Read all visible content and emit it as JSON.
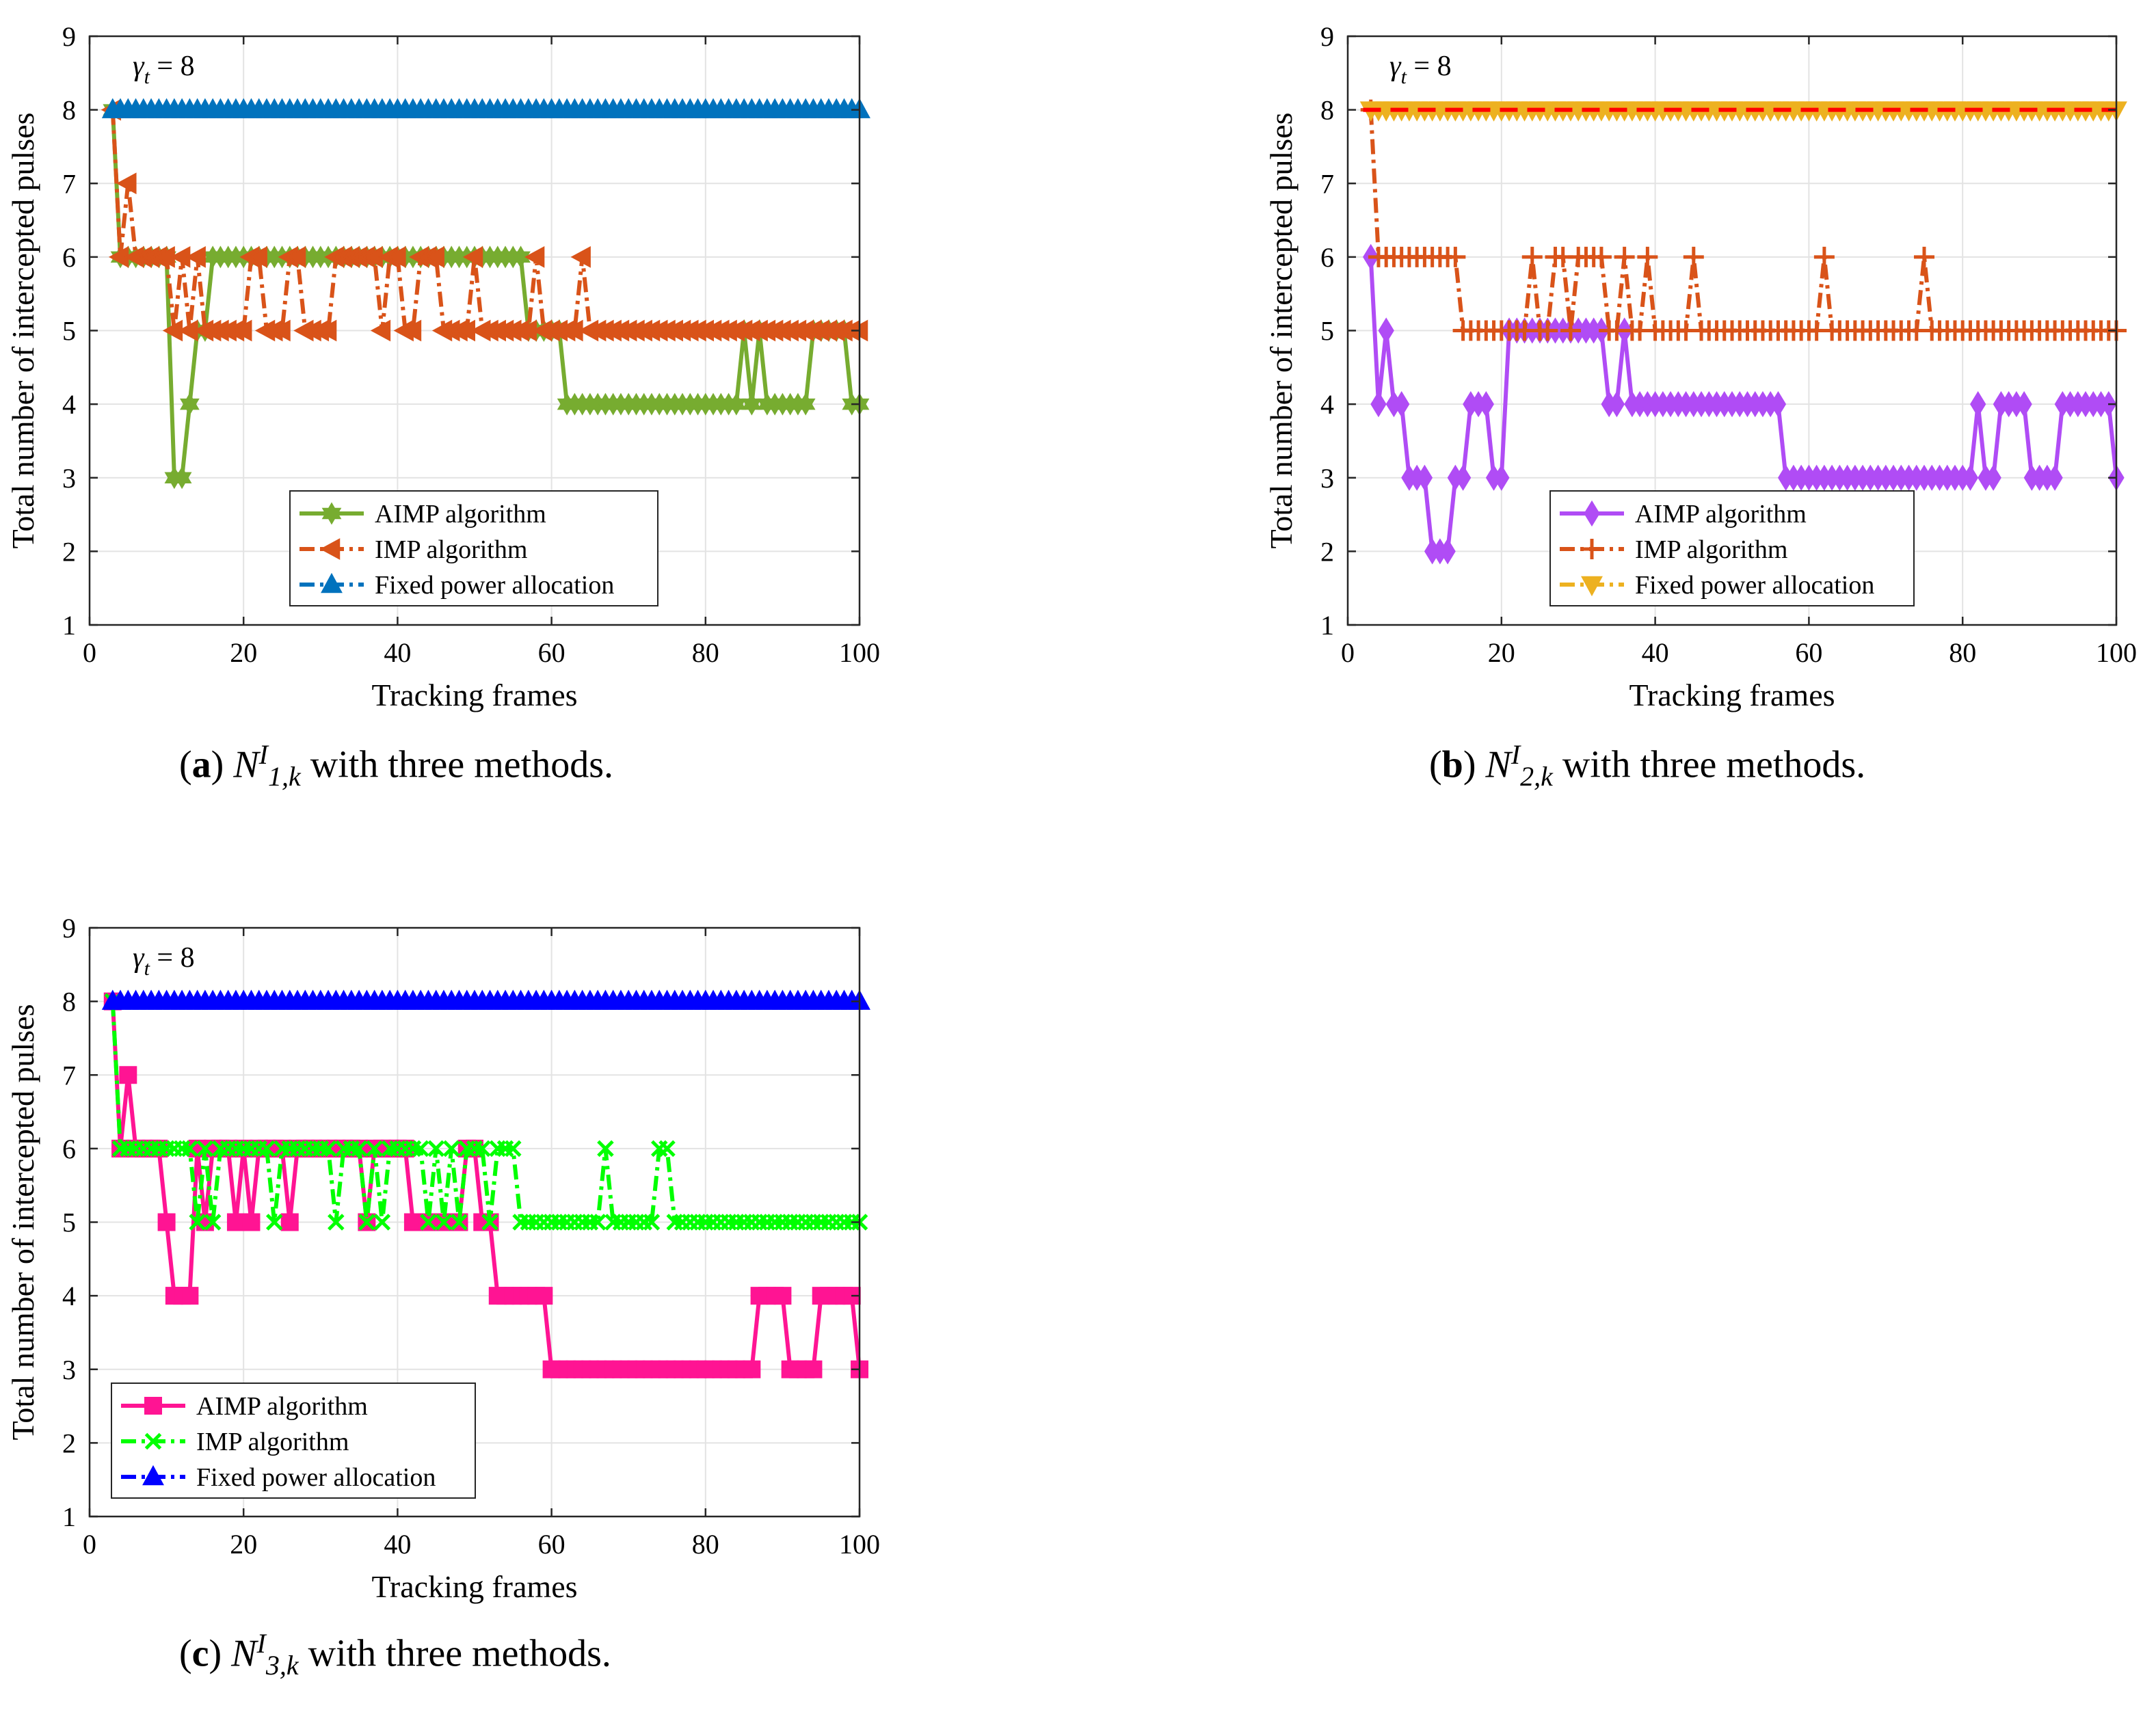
{
  "chart_data": [
    {
      "type": "line",
      "panel": "a",
      "caption": {
        "label": "a",
        "symbol": "N",
        "sup": "I",
        "sub": "1,k",
        "text": " with three methods."
      },
      "xlabel": "Tracking frames",
      "ylabel": "Total number of intercepted pulses",
      "xlim": [
        0,
        100
      ],
      "ylim": [
        1,
        9
      ],
      "xticks": [
        0,
        20,
        40,
        60,
        80,
        100
      ],
      "yticks": [
        1,
        2,
        3,
        4,
        5,
        6,
        7,
        8,
        9
      ],
      "grid": true,
      "annotation": {
        "symbol": "γ",
        "sub": "t",
        "text": " = 8"
      },
      "threshold": 8,
      "threshold_color": "#ff0000",
      "legend_position": "lower-center",
      "series": [
        {
          "name": "AIMP algorithm",
          "color": "#77ac30",
          "marker": "hexagram",
          "dash": "solid",
          "x_start": 3,
          "x_end": 100,
          "runs": [
            [
              3,
              3,
              8
            ],
            [
              4,
              10,
              6
            ],
            [
              11,
              12,
              3
            ],
            [
              13,
              13,
              4
            ],
            [
              14,
              14,
              5
            ],
            [
              15,
              15,
              5
            ],
            [
              16,
              56,
              6
            ],
            [
              57,
              61,
              5
            ],
            [
              62,
              84,
              4
            ],
            [
              85,
              85,
              5
            ],
            [
              86,
              86,
              4
            ],
            [
              87,
              87,
              5
            ],
            [
              88,
              93,
              4
            ],
            [
              94,
              94,
              5
            ],
            [
              95,
              98,
              5
            ],
            [
              99,
              100,
              4
            ]
          ]
        },
        {
          "name": "IMP algorithm",
          "color": "#d95319",
          "marker": "triangle-left",
          "dash": "dashdot",
          "x_start": 3,
          "x_end": 100,
          "runs": [
            [
              3,
              3,
              8
            ],
            [
              4,
              4,
              6
            ],
            [
              5,
              5,
              7
            ],
            [
              6,
              10,
              6
            ],
            [
              11,
              11,
              5
            ],
            [
              12,
              12,
              6
            ],
            [
              13,
              13,
              5
            ],
            [
              14,
              14,
              6
            ],
            [
              15,
              20,
              5
            ],
            [
              21,
              22,
              6
            ],
            [
              23,
              25,
              5
            ],
            [
              26,
              27,
              6
            ],
            [
              28,
              31,
              5
            ],
            [
              32,
              37,
              6
            ],
            [
              38,
              38,
              5
            ],
            [
              39,
              40,
              6
            ],
            [
              41,
              42,
              5
            ],
            [
              43,
              45,
              6
            ],
            [
              46,
              49,
              5
            ],
            [
              50,
              50,
              6
            ],
            [
              51,
              57,
              5
            ],
            [
              58,
              58,
              6
            ],
            [
              59,
              63,
              5
            ],
            [
              64,
              64,
              6
            ],
            [
              65,
              100,
              5
            ]
          ]
        },
        {
          "name": "Fixed power allocation",
          "color": "#0072bd",
          "marker": "triangle-up",
          "dash": "dashdot",
          "x_start": 3,
          "x_end": 100,
          "runs": [
            [
              3,
              100,
              8
            ]
          ]
        }
      ]
    },
    {
      "type": "line",
      "panel": "b",
      "caption": {
        "label": "b",
        "symbol": "N",
        "sup": "I",
        "sub": "2,k",
        "text": " with three methods."
      },
      "xlabel": "Tracking frames",
      "ylabel": "Total number of intercepted pulses",
      "xlim": [
        0,
        100
      ],
      "ylim": [
        1,
        9
      ],
      "xticks": [
        0,
        20,
        40,
        60,
        80,
        100
      ],
      "yticks": [
        1,
        2,
        3,
        4,
        5,
        6,
        7,
        8,
        9
      ],
      "grid": true,
      "annotation": {
        "symbol": "γ",
        "sub": "t",
        "text": " = 8"
      },
      "threshold": 8,
      "threshold_color": "#ff0000",
      "legend_position": "lower-center",
      "series": [
        {
          "name": "AIMP algorithm",
          "color": "#b04cf5",
          "marker": "diamond",
          "dash": "solid",
          "x_start": 3,
          "x_end": 100,
          "runs": [
            [
              3,
              3,
              6
            ],
            [
              4,
              4,
              4
            ],
            [
              5,
              5,
              5
            ],
            [
              6,
              7,
              4
            ],
            [
              8,
              10,
              3
            ],
            [
              11,
              13,
              2
            ],
            [
              14,
              15,
              3
            ],
            [
              16,
              18,
              4
            ],
            [
              19,
              20,
              3
            ],
            [
              21,
              33,
              5
            ],
            [
              34,
              35,
              4
            ],
            [
              36,
              36,
              5
            ],
            [
              37,
              56,
              4
            ],
            [
              57,
              81,
              3
            ],
            [
              82,
              82,
              4
            ],
            [
              83,
              84,
              3
            ],
            [
              85,
              88,
              4
            ],
            [
              89,
              90,
              3
            ],
            [
              91,
              92,
              3
            ],
            [
              93,
              99,
              4
            ],
            [
              100,
              100,
              3
            ]
          ]
        },
        {
          "name": "IMP algorithm",
          "color": "#d95319",
          "marker": "plus",
          "dash": "dashdot",
          "x_start": 3,
          "x_end": 100,
          "runs": [
            [
              3,
              3,
              8
            ],
            [
              4,
              14,
              6
            ],
            [
              15,
              23,
              5
            ],
            [
              24,
              24,
              6
            ],
            [
              25,
              26,
              5
            ],
            [
              27,
              28,
              6
            ],
            [
              29,
              29,
              5
            ],
            [
              30,
              33,
              6
            ],
            [
              34,
              35,
              5
            ],
            [
              36,
              36,
              6
            ],
            [
              37,
              38,
              5
            ],
            [
              39,
              39,
              6
            ],
            [
              40,
              44,
              5
            ],
            [
              45,
              45,
              6
            ],
            [
              46,
              61,
              5
            ],
            [
              62,
              62,
              6
            ],
            [
              63,
              74,
              5
            ],
            [
              75,
              75,
              6
            ],
            [
              76,
              100,
              5
            ]
          ]
        },
        {
          "name": "Fixed power allocation",
          "color": "#edb120",
          "marker": "triangle-down",
          "dash": "dashdot",
          "x_start": 3,
          "x_end": 100,
          "runs": [
            [
              3,
              100,
              8
            ]
          ]
        }
      ]
    },
    {
      "type": "line",
      "panel": "c",
      "caption": {
        "label": "c",
        "symbol": "N",
        "sup": "I",
        "sub": "3,k",
        "text": " with three methods."
      },
      "xlabel": "Tracking frames",
      "ylabel": "Total number of intercepted pulses",
      "xlim": [
        0,
        100
      ],
      "ylim": [
        1,
        9
      ],
      "xticks": [
        0,
        20,
        40,
        60,
        80,
        100
      ],
      "yticks": [
        1,
        2,
        3,
        4,
        5,
        6,
        7,
        8,
        9
      ],
      "grid": true,
      "annotation": {
        "symbol": "γ",
        "sub": "t",
        "text": " = 8"
      },
      "threshold": 8,
      "threshold_color": "#ff0000",
      "legend_position": "lower-left",
      "series": [
        {
          "name": "AIMP algorithm",
          "color": "#ff1493",
          "marker": "square",
          "dash": "solid",
          "x_start": 3,
          "x_end": 100,
          "runs": [
            [
              3,
              3,
              8
            ],
            [
              4,
              4,
              6
            ],
            [
              5,
              5,
              7
            ],
            [
              6,
              9,
              6
            ],
            [
              10,
              10,
              5
            ],
            [
              11,
              13,
              4
            ],
            [
              14,
              14,
              6
            ],
            [
              15,
              15,
              5
            ],
            [
              16,
              18,
              6
            ],
            [
              19,
              19,
              5
            ],
            [
              20,
              20,
              6
            ],
            [
              21,
              21,
              5
            ],
            [
              22,
              22,
              6
            ],
            [
              23,
              25,
              6
            ],
            [
              26,
              26,
              5
            ],
            [
              27,
              35,
              6
            ],
            [
              36,
              36,
              5
            ],
            [
              37,
              41,
              6
            ],
            [
              42,
              48,
              5
            ],
            [
              49,
              50,
              6
            ],
            [
              51,
              52,
              5
            ],
            [
              53,
              59,
              4
            ],
            [
              60,
              86,
              3
            ],
            [
              87,
              90,
              4
            ],
            [
              91,
              94,
              3
            ],
            [
              95,
              99,
              4
            ],
            [
              100,
              100,
              3
            ]
          ]
        },
        {
          "name": "IMP algorithm",
          "color": "#00ff00",
          "marker": "x",
          "dash": "dashdot",
          "x_start": 3,
          "x_end": 100,
          "runs": [
            [
              3,
              3,
              8
            ],
            [
              4,
              13,
              6
            ],
            [
              14,
              14,
              5
            ],
            [
              15,
              15,
              6
            ],
            [
              16,
              16,
              5
            ],
            [
              17,
              23,
              6
            ],
            [
              24,
              24,
              5
            ],
            [
              25,
              31,
              6
            ],
            [
              32,
              32,
              5
            ],
            [
              33,
              35,
              6
            ],
            [
              36,
              36,
              5
            ],
            [
              37,
              37,
              6
            ],
            [
              38,
              38,
              5
            ],
            [
              39,
              43,
              6
            ],
            [
              44,
              44,
              5
            ],
            [
              45,
              45,
              6
            ],
            [
              46,
              46,
              5
            ],
            [
              47,
              47,
              6
            ],
            [
              48,
              48,
              5
            ],
            [
              49,
              51,
              6
            ],
            [
              52,
              52,
              5
            ],
            [
              53,
              55,
              6
            ],
            [
              56,
              66,
              5
            ],
            [
              67,
              67,
              6
            ],
            [
              68,
              73,
              5
            ],
            [
              74,
              75,
              6
            ],
            [
              76,
              100,
              5
            ]
          ]
        },
        {
          "name": "Fixed power allocation",
          "color": "#0000ff",
          "marker": "triangle-up",
          "dash": "dashdot",
          "x_start": 3,
          "x_end": 100,
          "runs": [
            [
              3,
              100,
              8
            ]
          ]
        }
      ]
    }
  ]
}
